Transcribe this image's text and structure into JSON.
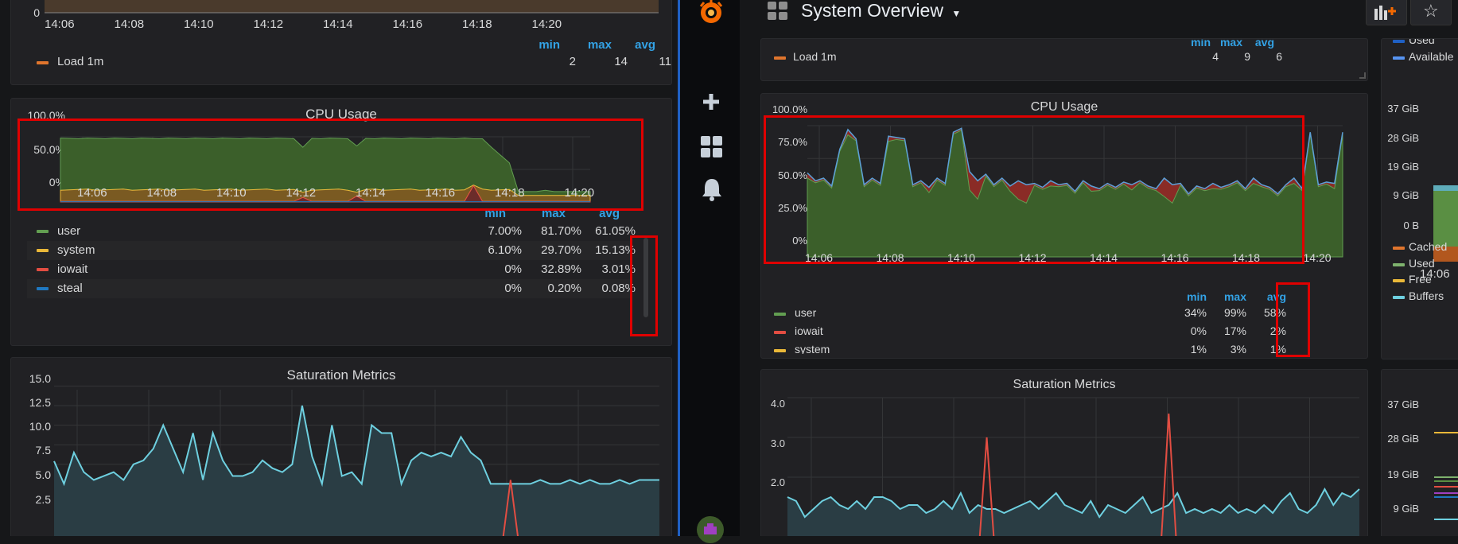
{
  "left": {
    "top_panel": {
      "y_zero_label": "0",
      "x_ticks": [
        "14:06",
        "14:08",
        "14:10",
        "14:12",
        "14:14",
        "14:16",
        "14:18",
        "14:20"
      ],
      "legend_headers": [
        "min",
        "max",
        "avg"
      ],
      "legend": [
        {
          "name": "Load 1m",
          "color": "#e0752d",
          "min": "2",
          "max": "14",
          "avg": "11"
        }
      ]
    },
    "cpu_panel": {
      "title": "CPU Usage",
      "y_ticks": [
        "100.0%",
        "50.0%",
        "0%"
      ],
      "x_ticks": [
        "14:06",
        "14:08",
        "14:10",
        "14:12",
        "14:14",
        "14:16",
        "14:18",
        "14:20"
      ],
      "legend_headers": [
        "min",
        "max",
        "avg"
      ],
      "legend": [
        {
          "name": "user",
          "color": "#629e51",
          "min": "7.00%",
          "max": "81.70%",
          "avg": "61.05%"
        },
        {
          "name": "system",
          "color": "#eab839",
          "min": "6.10%",
          "max": "29.70%",
          "avg": "15.13%"
        },
        {
          "name": "iowait",
          "color": "#e24d42",
          "min": "0%",
          "max": "32.89%",
          "avg": "3.01%"
        },
        {
          "name": "steal",
          "color": "#1f78c1",
          "min": "0%",
          "max": "0.20%",
          "avg": "0.08%"
        }
      ]
    },
    "saturation_panel": {
      "title": "Saturation Metrics",
      "y_ticks": [
        "15.0",
        "12.5",
        "10.0",
        "7.5",
        "5.0",
        "2.5"
      ]
    }
  },
  "sidebar": {
    "icons": [
      "grafana-logo-icon",
      "plus-icon",
      "dashboards-icon",
      "bell-icon",
      "user-avatar-icon"
    ]
  },
  "right": {
    "header": {
      "title": "System Overview"
    },
    "load_panel": {
      "legend_headers": [
        "min",
        "max",
        "avg"
      ],
      "legend": [
        {
          "name": "Load 1m",
          "color": "#e0752d",
          "min": "4",
          "max": "9",
          "avg": "6"
        }
      ]
    },
    "cpu_panel": {
      "title": "CPU Usage",
      "y_ticks": [
        "100.0%",
        "75.0%",
        "50.0%",
        "25.0%",
        "0%"
      ],
      "x_ticks": [
        "14:06",
        "14:08",
        "14:10",
        "14:12",
        "14:14",
        "14:16",
        "14:18",
        "14:20"
      ],
      "legend_headers": [
        "min",
        "max",
        "avg"
      ],
      "legend": [
        {
          "name": "user",
          "color": "#629e51",
          "min": "34%",
          "max": "99%",
          "avg": "58%"
        },
        {
          "name": "iowait",
          "color": "#e24d42",
          "min": "0%",
          "max": "17%",
          "avg": "2%"
        },
        {
          "name": "system",
          "color": "#eab839",
          "min": "1%",
          "max": "3%",
          "avg": "1%"
        }
      ]
    },
    "saturation_panel": {
      "title": "Saturation Metrics",
      "y_ticks": [
        "4.0",
        "3.0",
        "2.0"
      ]
    },
    "memory_panel_top": {
      "legend_top": [
        {
          "name": "Used",
          "color": "#1f60c4"
        },
        {
          "name": "Available",
          "color": "#5794f2"
        }
      ],
      "y_ticks": [
        "37 GiB",
        "28 GiB",
        "19 GiB",
        "9 GiB",
        "0 B"
      ],
      "x_tick": "14:06",
      "legend_bottom": [
        {
          "name": "Cached",
          "color": "#e0752d"
        },
        {
          "name": "Used",
          "color": "#7eb26d"
        },
        {
          "name": "Free",
          "color": "#eab839"
        },
        {
          "name": "Buffers",
          "color": "#6ed0e0"
        }
      ]
    },
    "memory_panel_bottom": {
      "y_ticks": [
        "37 GiB",
        "28 GiB",
        "19 GiB",
        "9 GiB"
      ]
    }
  }
}
